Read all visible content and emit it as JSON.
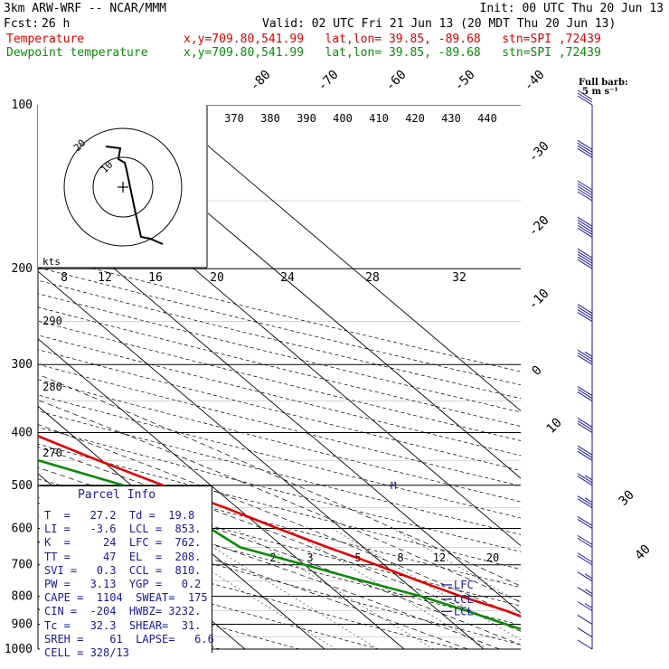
{
  "header": {
    "model": "3km ARW-WRF -- NCAR/MMM",
    "init": "Init: 00 UTC Thu 20 Jun 13",
    "fcst_label": "Fcst:",
    "fcst_value": "26 h",
    "valid": "Valid: 02 UTC Fri 21 Jun 13 (20 MDT Thu 20 Jun 13)",
    "line_temperature": "Temperature",
    "line_dewpoint": "Dewpoint temperature",
    "loc_text": "x,y=709.80,541.99   lat,lon= 39.85, -89.68   stn=SPI ,72439",
    "barb_key_line1": "Full barb:",
    "barb_key_line2": "5 m s⁻¹"
  },
  "colors": {
    "temperature": "#e00000",
    "dewpoint": "#0a8a0a",
    "wind": "#1a1a99",
    "parcel_text": "#1a1a99"
  },
  "parcel": {
    "title": "Parcel Info",
    "rows": [
      "T  =   27.2  Td =  19.8",
      "LI =   -3.6  LCL =  853.",
      "K  =     24  LFC =  762.",
      "TT =     47  EL  =  208.",
      "SVI =   0.3  CCL =  810.",
      "PW =   3.13  YGP =   0.2",
      "CAPE =  1104  SWEAT=  175",
      "CIN =  -204  HWBZ= 3232.",
      "Tc =   32.3  SHEAR=  31.",
      "SREH =    61  LAPSE=   6.6",
      "CELL = 328/13"
    ]
  },
  "hodograph": {
    "units_label": "kts",
    "ring_label": "20",
    "ring_label2": "10"
  },
  "level_labels": {
    "lfc": "LFC",
    "ccl": "CCL",
    "lcl": "LCL",
    "m": "M"
  },
  "chart_data": {
    "type": "line",
    "title": "",
    "ylabel": "",
    "pressure_levels_hpa": [
      1000,
      900,
      800,
      700,
      600,
      500,
      400,
      300,
      200,
      100
    ],
    "isotherm_labels_c": [
      40,
      30,
      10,
      0,
      -10,
      -20,
      -30,
      -40,
      -50,
      -60,
      -70,
      -80
    ],
    "mixing_ratio_labels": [
      "2",
      "3",
      "5",
      "8",
      "12",
      "20"
    ],
    "theta_labels_upper": [
      "370",
      "380",
      "390",
      "400",
      "410",
      "420",
      "430",
      "440"
    ],
    "theta_labels_mid": [
      "290",
      "280",
      "270"
    ],
    "theta_e_labels": [
      "8",
      "12",
      "16",
      "20",
      "24",
      "28",
      "32"
    ],
    "series": [
      {
        "name": "Temperature",
        "pressure": [
          1000,
          975,
          950,
          925,
          900,
          850,
          800,
          750,
          700,
          650,
          600,
          550,
          500,
          450,
          400,
          350,
          300,
          250,
          225,
          200,
          175,
          150,
          125,
          100
        ],
        "values": [
          27.5,
          26,
          25,
          23,
          21,
          18.5,
          15,
          12,
          9,
          5.5,
          2,
          -1.5,
          -6,
          -10.5,
          -15,
          -21,
          -27,
          -35,
          -40,
          -48,
          -52,
          -54,
          -57,
          -60
        ]
      },
      {
        "name": "Dewpoint temperature",
        "pressure": [
          1000,
          975,
          950,
          925,
          900,
          850,
          800,
          750,
          700,
          650,
          600,
          550,
          500,
          450,
          400,
          350,
          300,
          250,
          225,
          200,
          175,
          150,
          125,
          100
        ],
        "values": [
          19.8,
          20,
          19,
          18,
          16.5,
          13.5,
          10,
          5,
          0,
          -5.5,
          -6.5,
          -8,
          -11,
          -18,
          -34,
          -55,
          -48,
          -52,
          -57,
          -59,
          -61,
          -66,
          -71,
          -78
        ]
      }
    ],
    "wind_barbs": {
      "pressure": [
        1000,
        950,
        900,
        850,
        800,
        750,
        700,
        650,
        600,
        550,
        500,
        450,
        400,
        350,
        300,
        250,
        200,
        175,
        150,
        125,
        100
      ],
      "speed_ms": [
        5,
        5,
        5,
        7.5,
        7.5,
        7.5,
        10,
        10,
        10,
        12.5,
        12.5,
        15,
        15,
        15,
        17.5,
        20,
        25,
        25,
        25,
        20,
        15
      ]
    }
  }
}
